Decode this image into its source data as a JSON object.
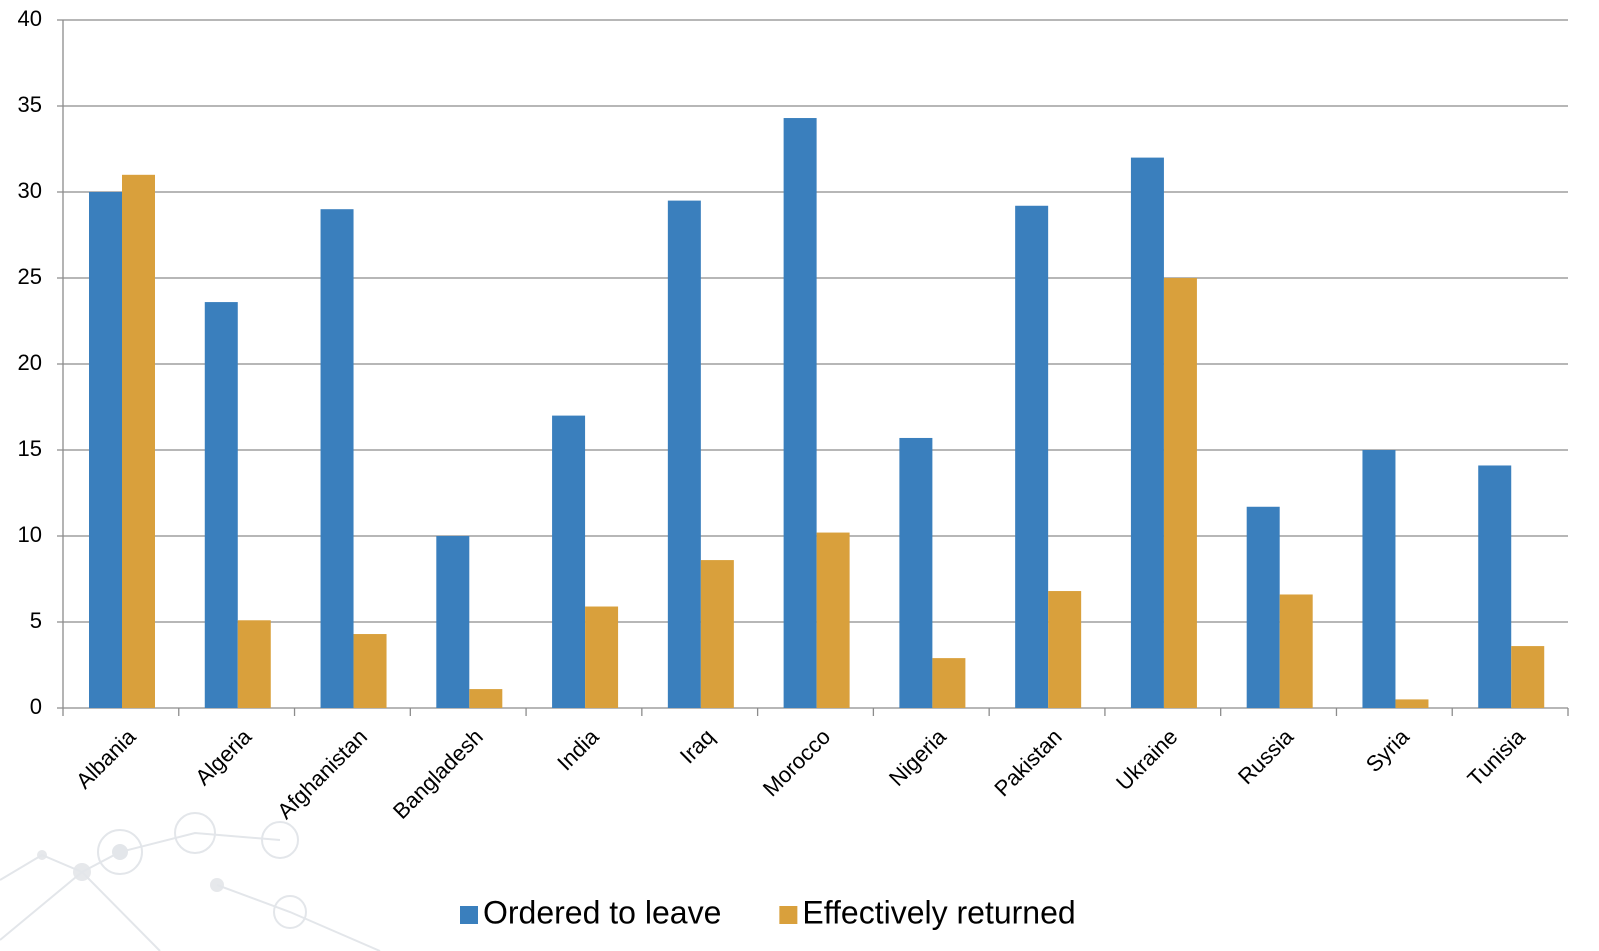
{
  "chart_data": {
    "type": "bar",
    "categories": [
      "Albania",
      "Algeria",
      "Afghanistan",
      "Bangladesh",
      "India",
      "Iraq",
      "Morocco",
      "Nigeria",
      "Pakistan",
      "Ukraine",
      "Russia",
      "Syria",
      "Tunisia"
    ],
    "series": [
      {
        "name": "Ordered to leave",
        "color": "#3a7fbd",
        "values": [
          30,
          23.6,
          29,
          10,
          17,
          29.5,
          34.3,
          15.7,
          29.2,
          32,
          11.7,
          15,
          14.1
        ]
      },
      {
        "name": "Effectively returned",
        "color": "#d9a03c",
        "values": [
          31,
          5.1,
          4.3,
          1.1,
          5.9,
          8.6,
          10.2,
          2.9,
          6.8,
          25,
          6.6,
          0.5,
          3.6
        ]
      }
    ],
    "ylim": [
      0,
      40
    ],
    "yticks": [
      0,
      5,
      10,
      15,
      20,
      25,
      30,
      35,
      40
    ],
    "grid": true,
    "legend": "bottom"
  }
}
